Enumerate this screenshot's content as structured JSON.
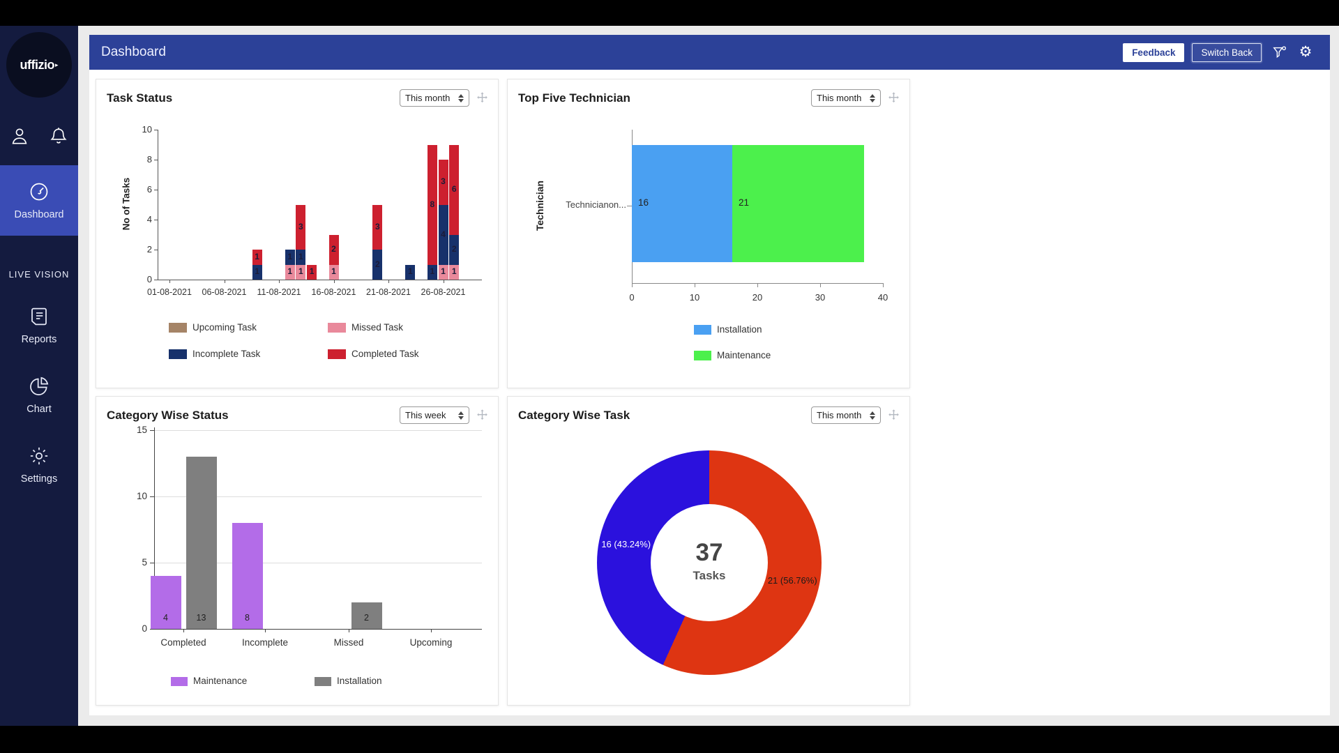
{
  "sidebar": {
    "logo_text": "uffizio",
    "nav": [
      {
        "label": "Dashboard",
        "active": true
      },
      {
        "label": "LIVE VISION"
      },
      {
        "label": "Reports"
      },
      {
        "label": "Chart"
      },
      {
        "label": "Settings"
      }
    ]
  },
  "header": {
    "title": "Dashboard",
    "feedback_label": "Feedback",
    "switch_back_label": "Switch Back"
  },
  "cards": [
    {
      "title": "Task Status",
      "period": "This month"
    },
    {
      "title": "Top Five Technician",
      "period": "This month"
    },
    {
      "title": "Category Wise Status",
      "period": "This week"
    },
    {
      "title": "Category Wise Task",
      "period": "This month"
    }
  ],
  "colors": {
    "sidebar": "#141b3f",
    "sidebar_active": "#3a4cb5",
    "header": "#2c4198",
    "incomplete": "#17316b",
    "completed": "#cd202f",
    "missed": "#e9899b",
    "upcoming": "#a58467",
    "installation_blue": "#4aa0f2",
    "maintenance_green": "#4cf04c",
    "maintenance_purple": "#b36ce8",
    "installation_gray": "#7f7f7f",
    "donut_red": "#de3512",
    "donut_blue": "#2b11dd"
  },
  "chart_data": [
    {
      "type": "bar",
      "stacked": true,
      "title": "Task Status",
      "period": "This month",
      "ylabel": "No of Tasks",
      "ylim": [
        0,
        10
      ],
      "yticks": [
        0,
        2,
        4,
        6,
        8,
        10
      ],
      "xticklabels": [
        "01-08-2021",
        "06-08-2021",
        "11-08-2021",
        "16-08-2021",
        "21-08-2021",
        "26-08-2021"
      ],
      "legend_position": "bottom",
      "grid": false,
      "series": [
        {
          "name": "Upcoming Task",
          "color": "#a58467"
        },
        {
          "name": "Missed Task",
          "color": "#e9899b"
        },
        {
          "name": "Incomplete Task",
          "color": "#17316b"
        },
        {
          "name": "Completed Task",
          "color": "#cd202f"
        }
      ],
      "bars": [
        {
          "date": "09-08-2021",
          "day": 9,
          "segments": [
            {
              "series": "Incomplete Task",
              "value": 1
            },
            {
              "series": "Completed Task",
              "value": 1
            }
          ]
        },
        {
          "date": "12-08-2021",
          "day": 12,
          "segments": [
            {
              "series": "Missed Task",
              "value": 1
            },
            {
              "series": "Incomplete Task",
              "value": 1
            }
          ]
        },
        {
          "date": "13-08-2021",
          "day": 13,
          "segments": [
            {
              "series": "Missed Task",
              "value": 1
            },
            {
              "series": "Incomplete Task",
              "value": 1
            },
            {
              "series": "Completed Task",
              "value": 3
            }
          ]
        },
        {
          "date": "14-08-2021",
          "day": 14,
          "segments": [
            {
              "series": "Completed Task",
              "value": 1
            }
          ]
        },
        {
          "date": "16-08-2021",
          "day": 16,
          "segments": [
            {
              "series": "Missed Task",
              "value": 1
            },
            {
              "series": "Completed Task",
              "value": 2
            }
          ]
        },
        {
          "date": "20-08-2021",
          "day": 20,
          "segments": [
            {
              "series": "Incomplete Task",
              "value": 2
            },
            {
              "series": "Completed Task",
              "value": 3
            }
          ]
        },
        {
          "date": "23-08-2021",
          "day": 23,
          "segments": [
            {
              "series": "Incomplete Task",
              "value": 1
            }
          ]
        },
        {
          "date": "25-08-2021",
          "day": 25,
          "segments": [
            {
              "series": "Incomplete Task",
              "value": 1
            },
            {
              "series": "Completed Task",
              "value": 8
            }
          ]
        },
        {
          "date": "26-08-2021",
          "day": 26,
          "segments": [
            {
              "series": "Missed Task",
              "value": 1
            },
            {
              "series": "Incomplete Task",
              "value": 4
            },
            {
              "series": "Completed Task",
              "value": 3
            }
          ]
        },
        {
          "date": "27-08-2021",
          "day": 27,
          "segments": [
            {
              "series": "Missed Task",
              "value": 1
            },
            {
              "series": "Incomplete Task",
              "value": 2
            },
            {
              "series": "Completed Task",
              "value": 6
            }
          ]
        }
      ]
    },
    {
      "type": "bar-horizontal",
      "stacked": true,
      "title": "Top Five Technician",
      "period": "This month",
      "ylabel": "Technician",
      "xlim": [
        0,
        40
      ],
      "xticks": [
        0,
        10,
        20,
        30,
        40
      ],
      "categories": [
        "Technicianon..."
      ],
      "legend_position": "bottom",
      "grid": false,
      "series": [
        {
          "name": "Installation",
          "color": "#4aa0f2",
          "values": [
            16
          ]
        },
        {
          "name": "Maintenance",
          "color": "#4cf04c",
          "values": [
            21
          ]
        }
      ]
    },
    {
      "type": "bar",
      "grouped": true,
      "title": "Category Wise Status",
      "period": "This week",
      "ylim": [
        0,
        15
      ],
      "yticks": [
        0,
        5,
        10,
        15
      ],
      "categories": [
        "Completed",
        "Incomplete",
        "Missed",
        "Upcoming"
      ],
      "legend_position": "bottom",
      "grid": true,
      "series": [
        {
          "name": "Maintenance",
          "color": "#b36ce8",
          "values": [
            4,
            8,
            0,
            0
          ]
        },
        {
          "name": "Installation",
          "color": "#7f7f7f",
          "values": [
            13,
            0,
            2,
            0
          ]
        }
      ]
    },
    {
      "type": "donut",
      "title": "Category Wise Task",
      "period": "This month",
      "center_value": "37",
      "center_label": "Tasks",
      "slices": [
        {
          "name": "Maintenance",
          "value": 21,
          "pct": 56.76,
          "label": "21 (56.76%)",
          "color": "#de3512",
          "label_color": "#1a1a1a"
        },
        {
          "name": "Installation",
          "value": 16,
          "pct": 43.24,
          "label": "16 (43.24%)",
          "color": "#2b11dd",
          "label_color": "#ffffff"
        }
      ]
    }
  ]
}
